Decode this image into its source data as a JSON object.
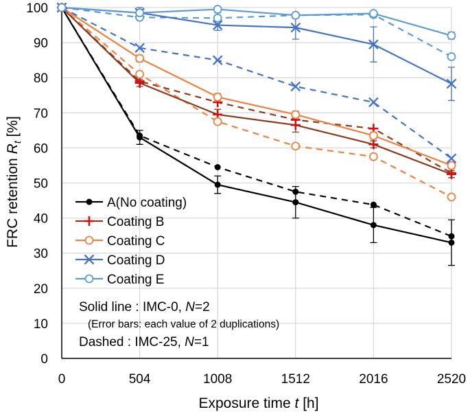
{
  "chart_data": {
    "type": "line",
    "title": "",
    "xlabel": {
      "prefix": "Exposure time ",
      "var": "t",
      "suffix": " [h]"
    },
    "ylabel": {
      "prefix": "FRC retention ",
      "var": "R",
      "sub": "t",
      "suffix": " [%]"
    },
    "x": [
      0,
      504,
      1008,
      1512,
      2016,
      2520
    ],
    "xlim": [
      0,
      2520
    ],
    "ylim": [
      0,
      100
    ],
    "ystep": 10,
    "grid": true,
    "series": [
      {
        "name": "A(No coating)",
        "color": "#000000",
        "marker": "dot",
        "solid": [
          100,
          63,
          49.5,
          44.5,
          38,
          33
        ],
        "solid_err": [
          [
            100,
            100
          ],
          [
            61,
            65
          ],
          [
            47,
            52
          ],
          [
            40,
            49
          ],
          [
            33,
            43
          ],
          [
            26.5,
            39.5
          ]
        ],
        "dashed": [
          100,
          63.5,
          54.5,
          47.5,
          43.8,
          34.8
        ]
      },
      {
        "name": "Coating B",
        "color": "#8B3A1E",
        "markerColor": "#D11111",
        "marker": "plus",
        "solid": [
          100,
          78.5,
          69.5,
          66.5,
          61,
          52.5
        ],
        "solid_err": [
          [
            100,
            100
          ],
          [
            77.5,
            79.5
          ],
          [
            68,
            71
          ],
          [
            64.5,
            68.5
          ],
          [
            60,
            62
          ],
          [
            51.5,
            53.5
          ]
        ],
        "dashed": [
          100,
          79,
          73,
          68,
          65.5,
          52.8
        ]
      },
      {
        "name": "Coating C",
        "color": "#F08040",
        "marker": "circle",
        "solid": [
          100,
          85.5,
          74.5,
          69.5,
          63.5,
          55
        ],
        "solid_err": [
          [
            100,
            100
          ],
          [
            84.5,
            86.5
          ],
          [
            73.5,
            75.5
          ],
          [
            68.5,
            70.5
          ],
          [
            62.5,
            64.5
          ],
          [
            54,
            56
          ]
        ],
        "dashed": [
          100,
          81,
          67.5,
          60.5,
          57.5,
          46
        ]
      },
      {
        "name": "Coating D",
        "color": "#4472C4",
        "marker": "x",
        "solid": [
          100,
          98.5,
          95,
          94.3,
          89.5,
          78.3
        ],
        "solid_err": [
          [
            100,
            100
          ],
          [
            97,
            100
          ],
          [
            93.5,
            96.5
          ],
          [
            91,
            97.5
          ],
          [
            84.5,
            94.5
          ],
          [
            73.5,
            83
          ]
        ],
        "dashed": [
          100,
          88.5,
          85,
          77.5,
          73,
          57
        ]
      },
      {
        "name": "Coating E",
        "color": "#5B9BD5",
        "marker": "circle",
        "solid": [
          100,
          98.5,
          99.5,
          97.8,
          98.3,
          92
        ],
        "solid_err": [
          [
            100,
            100
          ],
          [
            97.5,
            99.5
          ],
          [
            98.5,
            100
          ],
          [
            97,
            98.5
          ],
          [
            97.5,
            99
          ],
          [
            91,
            93
          ]
        ],
        "dashed": [
          100,
          97.2,
          97,
          97.8,
          98,
          86
        ]
      }
    ],
    "annotations": {
      "solid_line": {
        "prefix": "Solid line : IMC-0, ",
        "var": "N",
        "suffix": "=2"
      },
      "error_bars": "(Error bars: each value of 2 duplications)",
      "dashed_line": {
        "prefix": "Dashed   : IMC-25, ",
        "var": "N",
        "suffix": "=1"
      }
    }
  }
}
